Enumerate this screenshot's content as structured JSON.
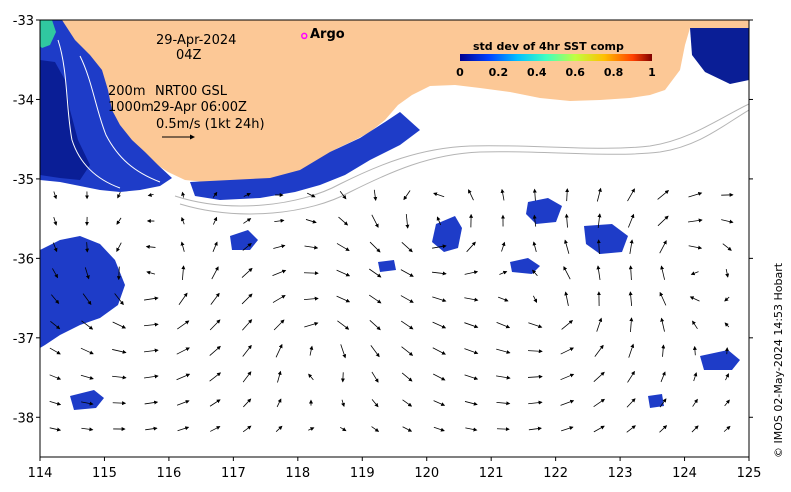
{
  "colors": {
    "land": "#fcc896",
    "ocean": "#ffffff",
    "sst_high": "#0a1e96",
    "sst_mid": "#1e50dc",
    "contour": "#b4b4b4",
    "argo": "#ff00ff"
  },
  "annotations": {
    "date": "29-Apr-2024",
    "hour": "04Z",
    "isobath_200": "200m",
    "isobath_1000": "1000m",
    "product": "NRT00 GSL",
    "valid_time": "29-Apr 06:00Z",
    "scale_text": "0.5m/s (1kt 24h)",
    "argo_label": "Argo",
    "credit": "© IMOS 02-May-2024 14:53 Hobart"
  },
  "colorbar": {
    "title": "std dev of 4hr SST comp",
    "ticks": [
      "0",
      "0.2",
      "0.4",
      "0.6",
      "0.8",
      "1"
    ]
  },
  "chart_data": {
    "type": "map",
    "xlim": [
      114,
      125
    ],
    "ylim": [
      -38.5,
      -33
    ],
    "x_ticks": [
      "114",
      "115",
      "116",
      "117",
      "118",
      "119",
      "120",
      "121",
      "122",
      "123",
      "124",
      "125"
    ],
    "y_ticks": [
      "-33",
      "-34",
      "-35",
      "-36",
      "-37",
      "-38"
    ],
    "argo_float": {
      "lon": 118.1,
      "lat": -33.2
    },
    "current_scale_ms": 0.5
  }
}
